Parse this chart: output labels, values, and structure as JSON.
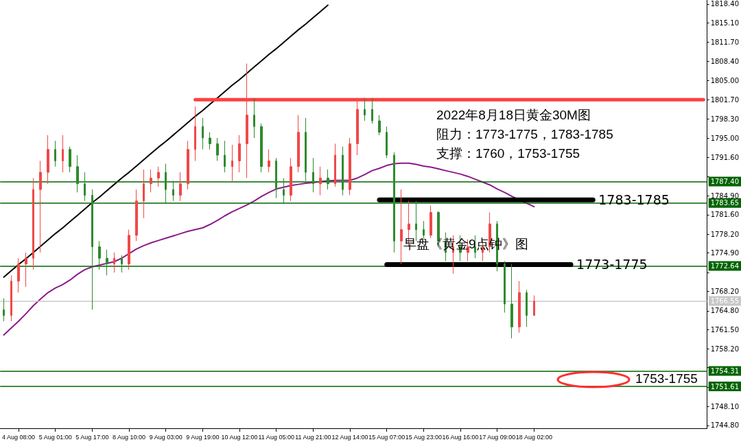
{
  "chart_data": {
    "type": "candlestick",
    "categories": [
      null,
      null,
      "4 Aug 08:00",
      null,
      null,
      null,
      null,
      "5 Aug 01:00",
      null,
      null,
      null,
      null,
      "5 Aug 17:00",
      null,
      null,
      null,
      null,
      "8 Aug 10:00",
      null,
      null,
      null,
      null,
      "9 Aug 03:00",
      null,
      null,
      null,
      null,
      "9 Aug 19:00",
      null,
      null,
      null,
      null,
      "10 Aug 12:00",
      null,
      null,
      null,
      null,
      "11 Aug 05:00",
      null,
      null,
      null,
      null,
      "11 Aug 21:00",
      null,
      null,
      null,
      null,
      "12 Aug 14:00",
      null,
      null,
      null,
      null,
      "15 Aug 07:00",
      null,
      null,
      null,
      null,
      "15 Aug 23:00",
      null,
      null,
      null,
      null,
      "16 Aug 16:00",
      null,
      null,
      null,
      null,
      "17 Aug 09:00",
      null,
      null,
      null,
      null,
      "18 Aug 02:00",
      null,
      null,
      null,
      null,
      null,
      null,
      null,
      null,
      null,
      null,
      null,
      null,
      null,
      null,
      null,
      null,
      null,
      null,
      null,
      null,
      null,
      null,
      null
    ],
    "ohlc": [
      [
        1765,
        1767,
        1763,
        1764
      ],
      [
        1764,
        1771,
        1763,
        1770
      ],
      [
        1770,
        1774,
        1768,
        1773
      ],
      [
        1773,
        1775,
        1769,
        1774
      ],
      [
        1774,
        1788,
        1772,
        1786
      ],
      [
        1786,
        1791,
        1775,
        1789
      ],
      [
        1789,
        1795.5,
        1787,
        1793
      ],
      [
        1793,
        1794.5,
        1790,
        1791
      ],
      [
        1791,
        1795.5,
        1789,
        1793
      ],
      [
        1793,
        1793.5,
        1789,
        1790
      ],
      [
        1790,
        1792,
        1785.5,
        1787
      ],
      [
        1787,
        1789,
        1784,
        1785
      ],
      [
        1785,
        1786,
        1765,
        1776
      ],
      [
        1776,
        1777,
        1772,
        1774
      ],
      [
        1774,
        1775.5,
        1771,
        1773
      ],
      [
        1773,
        1775,
        1771.5,
        1774
      ],
      [
        1774,
        1774.5,
        1771.5,
        1773
      ],
      [
        1773,
        1779,
        1772,
        1778
      ],
      [
        1778,
        1786,
        1777,
        1784
      ],
      [
        1784,
        1789.5,
        1781,
        1787
      ],
      [
        1787,
        1789.5,
        1785.5,
        1788
      ],
      [
        1788,
        1790,
        1786.5,
        1789
      ],
      [
        1789,
        1790.5,
        1783.5,
        1786
      ],
      [
        1786,
        1787.5,
        1784,
        1785
      ],
      [
        1785,
        1789,
        1784,
        1787
      ],
      [
        1787,
        1794.5,
        1786,
        1793
      ],
      [
        1793,
        1800.5,
        1791,
        1797
      ],
      [
        1797,
        1798.5,
        1793,
        1795
      ],
      [
        1795,
        1796,
        1793,
        1794
      ],
      [
        1794,
        1795,
        1791,
        1792
      ],
      [
        1792,
        1794.5,
        1789,
        1790
      ],
      [
        1790,
        1793.8,
        1787.5,
        1791
      ],
      [
        1791,
        1795.5,
        1789,
        1794
      ],
      [
        1794,
        1808,
        1788,
        1799
      ],
      [
        1799,
        1802,
        1795,
        1797
      ],
      [
        1797,
        1797.5,
        1789,
        1790
      ],
      [
        1790,
        1793,
        1789,
        1791
      ],
      [
        1791,
        1791.5,
        1784.5,
        1786
      ],
      [
        1786,
        1788,
        1783.5,
        1785
      ],
      [
        1785,
        1791.5,
        1784,
        1790
      ],
      [
        1790,
        1799,
        1789,
        1796
      ],
      [
        1796,
        1798.5,
        1787.5,
        1789
      ],
      [
        1789,
        1791.5,
        1785.5,
        1787
      ],
      [
        1787,
        1790,
        1785,
        1788
      ],
      [
        1788,
        1789.5,
        1786,
        1787
      ],
      [
        1787,
        1794,
        1786.5,
        1792
      ],
      [
        1792,
        1793.5,
        1785,
        1786
      ],
      [
        1786,
        1795,
        1785,
        1794
      ],
      [
        1794,
        1802,
        1792,
        1800
      ],
      [
        1800,
        1802,
        1798,
        1799
      ],
      [
        1800,
        1802,
        1797.5,
        1798
      ],
      [
        1798,
        1799,
        1795.5,
        1796
      ],
      [
        1796,
        1797,
        1791.5,
        1792
      ],
      [
        1792,
        1792.5,
        1775,
        1777
      ],
      [
        1777,
        1786,
        1773,
        1779
      ],
      [
        1779,
        1784,
        1776,
        1780
      ],
      [
        1780,
        1784,
        1777,
        1779
      ],
      [
        1779,
        1780.5,
        1777.5,
        1778
      ],
      [
        1778,
        1783.2,
        1777.5,
        1782
      ],
      [
        1782,
        1782.2,
        1776,
        1777
      ],
      [
        1777,
        1778.5,
        1773.5,
        1775
      ],
      [
        1775,
        1778,
        1771.3,
        1776
      ],
      [
        1776,
        1778,
        1773.5,
        1775
      ],
      [
        1775,
        1777.3,
        1773.5,
        1776
      ],
      [
        1776,
        1778,
        1774,
        1775
      ],
      [
        1775,
        1777,
        1773.5,
        1776
      ],
      [
        1776,
        1782,
        1775,
        1780
      ],
      [
        1780,
        1780.5,
        1771.7,
        1773
      ],
      [
        1773,
        1773.5,
        1764.5,
        1766
      ],
      [
        1766,
        1773,
        1760,
        1762
      ],
      [
        1762,
        1770,
        1761,
        1768
      ],
      [
        1768,
        1768.5,
        1762,
        1764
      ],
      [
        1764,
        1767.5,
        1764,
        1766.5
      ],
      null,
      null,
      null,
      null,
      null,
      null,
      null,
      null,
      null,
      null,
      null,
      null,
      null,
      null,
      null,
      null,
      null,
      null,
      null,
      null,
      null,
      null,
      null
    ],
    "colors": [
      "#2e8b2e",
      "#f04848",
      "#f04848",
      "#f04848",
      "#f04848",
      "#f04848",
      "#f04848",
      "#2e8b2e",
      "#f04848",
      "#2e8b2e",
      "#2e8b2e",
      "#2e8b2e",
      "#2e8b2e",
      "#2e8b2e",
      "#2e8b2e",
      "#f04848",
      "#2e8b2e",
      "#f04848",
      "#f04848",
      "#f04848",
      "#f04848",
      "#f04848",
      "#2e8b2e",
      "#2e8b2e",
      "#f04848",
      "#f04848",
      "#f04848",
      "#2e8b2e",
      "#2e8b2e",
      "#2e8b2e",
      "#2e8b2e",
      "#f04848",
      "#f04848",
      "#f04848",
      "#2e8b2e",
      "#2e8b2e",
      "#f04848",
      "#2e8b2e",
      "#2e8b2e",
      "#f04848",
      "#f04848",
      "#2e8b2e",
      "#2e8b2e",
      "#f04848",
      "#2e8b2e",
      "#f04848",
      "#2e8b2e",
      "#f04848",
      "#f04848",
      "#2e8b2e",
      "#2e8b2e",
      "#2e8b2e",
      "#2e8b2e",
      "#2e8b2e",
      "#f04848",
      "#f04848",
      "#2e8b2e",
      "#2e8b2e",
      "#f04848",
      "#2e8b2e",
      "#2e8b2e",
      "#f04848",
      "#2e8b2e",
      "#f04848",
      "#2e8b2e",
      "#f04848",
      "#f04848",
      "#2e8b2e",
      "#2e8b2e",
      "#2e8b2e",
      "#f04848",
      "#2e8b2e",
      "#f04848",
      null,
      null,
      null,
      null,
      null,
      null,
      null,
      null,
      null,
      null,
      null,
      null,
      null,
      null,
      null,
      null,
      null,
      null,
      null,
      null,
      null,
      null,
      null
    ],
    "series": [
      {
        "type": "line",
        "color": "#8b1a8b",
        "values": [
          1760.6,
          1761.8,
          1763,
          1764.3,
          1765.7,
          1766.9,
          1768,
          1768.8,
          1769.4,
          1770.2,
          1771.2,
          1772,
          1772.5,
          1772.8,
          1773.1,
          1773.4,
          1774,
          1774.8,
          1775.6,
          1776.2,
          1776.7,
          1777.1,
          1777.5,
          1777.9,
          1778.3,
          1778.7,
          1779,
          1779.3,
          1779.9,
          1780.6,
          1781.4,
          1782.1,
          1782.7,
          1783.3,
          1784,
          1784.8,
          1785.5,
          1786.1,
          1786.4,
          1786.7,
          1786.9,
          1787.1,
          1787.2,
          1787.4,
          1787.5,
          1787.6,
          1787.6,
          1787.6,
          1788,
          1788.6,
          1789.3,
          1789.7,
          1790.2,
          1790.5,
          1790.6,
          1790.6,
          1790.4,
          1790.1,
          1789.9,
          1789.6,
          1789.3,
          1789,
          1788.7,
          1788.3,
          1787.8,
          1787.3,
          1786.8,
          1786.1,
          1785.5,
          1784.8,
          1784.2,
          1783.6,
          1783.0,
          null,
          null,
          null,
          null,
          null,
          null,
          null,
          null,
          null,
          null,
          null,
          null,
          null,
          null,
          null,
          null,
          null,
          null,
          null,
          null,
          null,
          null,
          null
        ]
      },
      {
        "type": "line",
        "color": "#000000",
        "values": [
          1770.7,
          1771.8,
          1772.9,
          1773.9,
          1775.0,
          1776.1,
          1777.2,
          1778.3,
          1779.3,
          1780.4,
          1781.5,
          1782.6,
          1783.7,
          1784.7,
          1785.8,
          1786.9,
          1788.0,
          1789.0,
          1790.1,
          1791.2,
          1792.3,
          1793.4,
          1794.4,
          1795.5,
          1796.6,
          1797.7,
          1798.8,
          1799.8,
          1800.9,
          1802.0,
          1803.1,
          1804.2,
          1805.2,
          1806.3,
          1807.4,
          1808.5,
          1809.6,
          1810.6,
          1811.7,
          1812.8,
          1813.9,
          1814.9,
          1816.0,
          1817.1,
          1818.2,
          null,
          null,
          null,
          null,
          null,
          null,
          null,
          null,
          null,
          null,
          null,
          null,
          null,
          null,
          null,
          null,
          null,
          null,
          null,
          null,
          null,
          null,
          null,
          null,
          null,
          null,
          null,
          null,
          null,
          null,
          null,
          null,
          null,
          null,
          null,
          null,
          null,
          null,
          null,
          null,
          null,
          null,
          null,
          null,
          null,
          null,
          null,
          null,
          null,
          null,
          null
        ]
      },
      {
        "type": "line",
        "color": "#ff4040",
        "values": [
          null,
          null,
          null,
          null,
          null,
          null,
          null,
          null,
          null,
          null,
          null,
          null,
          null,
          null,
          null,
          null,
          null,
          null,
          null,
          null,
          null,
          null,
          null,
          null,
          null,
          null,
          1801.7,
          1801.7,
          1801.7,
          1801.7,
          1801.7,
          1801.7,
          1801.7,
          1801.7,
          1801.7,
          1801.7,
          1801.7,
          1801.7,
          1801.7,
          1801.7,
          1801.7,
          1801.7,
          1801.7,
          1801.7,
          1801.7,
          1801.7,
          1801.7,
          1801.7,
          1801.7,
          1801.7,
          1801.7,
          1801.7,
          1801.7,
          1801.7,
          1801.7,
          1801.7,
          1801.7,
          1801.7,
          1801.7,
          1801.7,
          1801.7,
          1801.7,
          1801.7,
          1801.7,
          1801.7,
          1801.7,
          1801.7,
          1801.7,
          1801.7,
          1801.7,
          1801.7,
          1801.7,
          1801.7,
          1801.7,
          1801.7,
          1801.7,
          1801.7,
          1801.7,
          1801.7,
          1801.7,
          1801.7,
          1801.7,
          1801.7,
          1801.7,
          1801.7,
          1801.7,
          1801.7,
          1801.7,
          1801.7,
          1801.7,
          1801.7,
          1801.7,
          1801.7,
          1801.7,
          1801.7,
          1801.7
        ]
      },
      {
        "type": "line",
        "name": "1783-1785",
        "color": "#000000",
        "values": [
          null,
          null,
          null,
          null,
          null,
          null,
          null,
          null,
          null,
          null,
          null,
          null,
          null,
          null,
          null,
          null,
          null,
          null,
          null,
          null,
          null,
          null,
          null,
          null,
          null,
          null,
          null,
          null,
          null,
          null,
          null,
          null,
          null,
          null,
          null,
          null,
          null,
          null,
          null,
          null,
          null,
          null,
          null,
          null,
          null,
          null,
          null,
          null,
          null,
          null,
          null,
          1784.2,
          1784.2,
          1784.2,
          1784.2,
          1784.2,
          1784.2,
          1784.2,
          1784.2,
          1784.2,
          1784.2,
          1784.2,
          1784.2,
          1784.2,
          1784.2,
          1784.2,
          1784.2,
          1784.2,
          1784.2,
          1784.2,
          1784.2,
          1784.2,
          1784.2,
          1784.2,
          1784.2,
          1784.2,
          1784.2,
          1784.2,
          1784.2,
          1784.2,
          1784.2,
          null,
          null,
          null,
          null,
          null,
          null,
          null,
          null,
          null,
          null,
          null,
          null,
          null,
          null,
          null
        ]
      },
      {
        "type": "line",
        "name": "1773-1775",
        "color": "#000000",
        "values": [
          null,
          null,
          null,
          null,
          null,
          null,
          null,
          null,
          null,
          null,
          null,
          null,
          null,
          null,
          null,
          null,
          null,
          null,
          null,
          null,
          null,
          null,
          null,
          null,
          null,
          null,
          null,
          null,
          null,
          null,
          null,
          null,
          null,
          null,
          null,
          null,
          null,
          null,
          null,
          null,
          null,
          null,
          null,
          null,
          null,
          null,
          null,
          null,
          null,
          null,
          null,
          null,
          1772.9,
          1772.9,
          1772.9,
          1772.9,
          1772.9,
          1772.9,
          1772.9,
          1772.9,
          1772.9,
          1772.9,
          1772.9,
          1772.9,
          1772.9,
          1772.9,
          1772.9,
          1772.9,
          1772.9,
          1772.9,
          1772.9,
          1772.9,
          1772.9,
          1772.9,
          1772.9,
          1772.9,
          1772.9,
          1772.9,
          null,
          null,
          null,
          null,
          null,
          null,
          null,
          null,
          null,
          null,
          null,
          null,
          null,
          null,
          null,
          null,
          null,
          null
        ]
      }
    ],
    "ref_lines": [
      {
        "axis": "y",
        "value": 1787.4,
        "label": "1787.40",
        "color": "#006400"
      },
      {
        "axis": "y",
        "value": 1783.65,
        "label": "1783.65",
        "color": "#006400"
      },
      {
        "axis": "y",
        "value": 1772.64,
        "label": "1772.64",
        "color": "#006400"
      },
      {
        "axis": "y",
        "value": 1754.31,
        "label": "1754.31",
        "color": "#006400"
      },
      {
        "axis": "y",
        "value": 1751.61,
        "label": "1751.61",
        "color": "#006400"
      },
      {
        "axis": "y",
        "value": 1766.55,
        "label": "1766.55",
        "color": "#c8c8c8"
      }
    ],
    "ylim": [
      1744.3,
      1819.1
    ],
    "yticks": [
      {
        "value": 1818.4,
        "label": "1818.40"
      },
      {
        "value": 1815.1,
        "label": "1815.10"
      },
      {
        "value": 1811.7,
        "label": "1811.70"
      },
      {
        "value": 1808.4,
        "label": "1808.40"
      },
      {
        "value": 1805,
        "label": "1805.00"
      },
      {
        "value": 1801.7,
        "label": "1801.70"
      },
      {
        "value": 1798.3,
        "label": "1798.30"
      },
      {
        "value": 1795,
        "label": "1795.00"
      },
      {
        "value": 1791.6,
        "label": "1791.60"
      },
      {
        "value": 1788.3,
        "label": null
      },
      {
        "value": 1784.9,
        "label": "1784.90"
      },
      {
        "value": 1781.6,
        "label": "1781.60"
      },
      {
        "value": 1778.2,
        "label": "1778.20"
      },
      {
        "value": 1774.9,
        "label": "1774.90"
      },
      {
        "value": 1771.5,
        "label": null
      },
      {
        "value": 1768.2,
        "label": "1768.20"
      },
      {
        "value": 1764.8,
        "label": "1764.80"
      },
      {
        "value": 1761.5,
        "label": "1761.50"
      },
      {
        "value": 1758.2,
        "label": "1758.20"
      },
      {
        "value": 1754.9,
        "label": null
      },
      {
        "value": 1751.5,
        "label": null
      },
      {
        "value": 1748.1,
        "label": "1748.10"
      },
      {
        "value": 1744.8,
        "label": "1744.80"
      }
    ],
    "annotations": [
      "2022年8月18日黄金30M图",
      "阻力：1773-1775，1783-1785",
      "支撑：1760，1753-1755",
      "早盘《黄金9点钟》图",
      "1753-1755"
    ]
  }
}
